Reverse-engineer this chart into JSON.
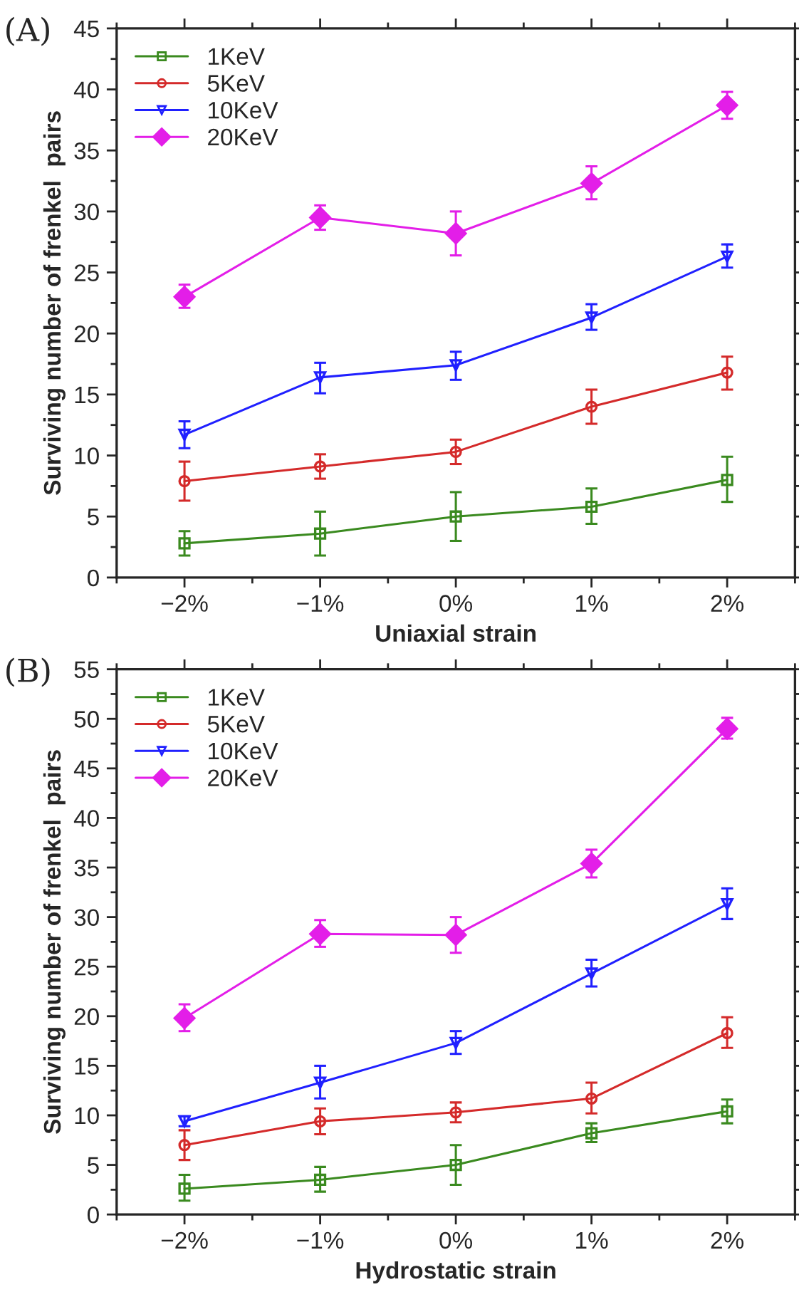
{
  "chart_data": [
    {
      "type": "line",
      "annotations": [
        "(A)"
      ],
      "xlabel": "Uniaxial strain",
      "ylabel": "Surviving number of frenkel  pairs",
      "categories": [
        "−2%",
        "−1%",
        "0%",
        "1%",
        "2%"
      ],
      "ylim": [
        0,
        45
      ],
      "yticks": [
        0,
        5,
        10,
        15,
        20,
        25,
        30,
        35,
        40,
        45
      ],
      "grid": false,
      "legend": "top left",
      "series": [
        {
          "name": "1KeV",
          "color": "#3a8a1f",
          "marker": "square",
          "values": [
            2.8,
            3.6,
            5.0,
            5.8,
            8.0
          ],
          "errors": [
            [
              1.8,
              3.8
            ],
            [
              1.8,
              5.4
            ],
            [
              3.0,
              7.0
            ],
            [
              4.4,
              7.3
            ],
            [
              6.2,
              9.9
            ]
          ]
        },
        {
          "name": "5KeV",
          "color": "#d42a2a",
          "marker": "circle",
          "values": [
            7.9,
            9.1,
            10.3,
            14.0,
            16.8
          ],
          "errors": [
            [
              6.3,
              9.5
            ],
            [
              8.1,
              10.1
            ],
            [
              9.3,
              11.3
            ],
            [
              12.6,
              15.4
            ],
            [
              15.4,
              18.1
            ]
          ]
        },
        {
          "name": "10KeV",
          "color": "#2020ff",
          "marker": "triangle",
          "values": [
            11.7,
            16.4,
            17.4,
            21.3,
            26.3
          ],
          "errors": [
            [
              10.6,
              12.8
            ],
            [
              15.1,
              17.6
            ],
            [
              16.2,
              18.5
            ],
            [
              20.3,
              22.4
            ],
            [
              25.4,
              27.3
            ]
          ]
        },
        {
          "name": "20KeV",
          "color": "#e31ee8",
          "marker": "diamond",
          "values": [
            23.0,
            29.5,
            28.2,
            32.3,
            38.7
          ],
          "errors": [
            [
              22.1,
              24.0
            ],
            [
              28.5,
              30.5
            ],
            [
              26.4,
              30.0
            ],
            [
              31.0,
              33.7
            ],
            [
              37.6,
              39.8
            ]
          ]
        }
      ]
    },
    {
      "type": "line",
      "annotations": [
        "(B)"
      ],
      "xlabel": "Hydrostatic strain",
      "ylabel": "Surviving number of frenkel  pairs",
      "categories": [
        "−2%",
        "−1%",
        "0%",
        "1%",
        "2%"
      ],
      "ylim": [
        0,
        55
      ],
      "yticks": [
        0,
        5,
        10,
        15,
        20,
        25,
        30,
        35,
        40,
        45,
        50,
        55
      ],
      "grid": false,
      "legend": "top left",
      "series": [
        {
          "name": "1KeV",
          "color": "#3a8a1f",
          "marker": "square",
          "values": [
            2.6,
            3.5,
            5.0,
            8.2,
            10.4
          ],
          "errors": [
            [
              1.4,
              4.0
            ],
            [
              2.3,
              4.8
            ],
            [
              3.0,
              7.0
            ],
            [
              7.3,
              9.2
            ],
            [
              9.2,
              11.6
            ]
          ]
        },
        {
          "name": "5KeV",
          "color": "#d42a2a",
          "marker": "circle",
          "values": [
            7.0,
            9.4,
            10.3,
            11.7,
            18.3
          ],
          "errors": [
            [
              5.5,
              8.5
            ],
            [
              8.1,
              10.7
            ],
            [
              9.3,
              11.3
            ],
            [
              10.2,
              13.3
            ],
            [
              16.8,
              19.9
            ]
          ]
        },
        {
          "name": "10KeV",
          "color": "#2020ff",
          "marker": "triangle",
          "values": [
            9.4,
            13.3,
            17.3,
            24.3,
            31.3
          ],
          "errors": [
            [
              8.9,
              9.9
            ],
            [
              11.7,
              15.0
            ],
            [
              16.2,
              18.5
            ],
            [
              23.0,
              25.7
            ],
            [
              29.8,
              32.9
            ]
          ]
        },
        {
          "name": "20KeV",
          "color": "#e31ee8",
          "marker": "diamond",
          "values": [
            19.8,
            28.3,
            28.2,
            35.4,
            49.0
          ],
          "errors": [
            [
              18.5,
              21.2
            ],
            [
              27.0,
              29.7
            ],
            [
              26.4,
              30.0
            ],
            [
              34.0,
              36.8
            ],
            [
              48.0,
              50.1
            ]
          ]
        }
      ]
    }
  ]
}
